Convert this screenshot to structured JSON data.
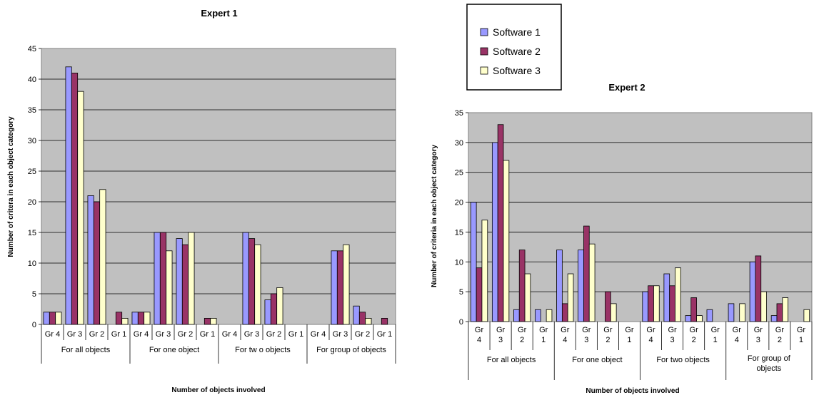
{
  "colors": {
    "plot_bg": "#c0c0c0",
    "software_1": "#9999ff",
    "software_2": "#993366",
    "software_3": "#ffffcc"
  },
  "legend": {
    "items": [
      "Software 1",
      "Software 2",
      "Software 3"
    ]
  },
  "chart_data": [
    {
      "type": "bar",
      "title": "Expert 1",
      "xlabel": "Number of objects involved",
      "ylabel": "Number of critera in each object category",
      "ylim": [
        0,
        45
      ],
      "yticks": [
        0,
        5,
        10,
        15,
        20,
        25,
        30,
        35,
        40,
        45
      ],
      "grid": true,
      "groups": [
        "For all objects",
        "For one object",
        "For tw o objects",
        "For group of objects"
      ],
      "subcategories": [
        [
          "Gr 4",
          "Gr 3",
          "Gr 2",
          "Gr 1"
        ],
        [
          "Gr 4",
          "Gr 3",
          "Gr 2",
          "Gr 1"
        ],
        [
          "Gr 4",
          "Gr 3",
          "Gr 2",
          "Gr 1"
        ],
        [
          "Gr 4",
          "Gr 3",
          "Gr 2",
          "Gr 1"
        ]
      ],
      "series": [
        {
          "name": "Software 1",
          "values": [
            2,
            42,
            21,
            0,
            2,
            15,
            14,
            0,
            0,
            15,
            4,
            0,
            0,
            12,
            3,
            0
          ]
        },
        {
          "name": "Software 2",
          "values": [
            2,
            41,
            20,
            2,
            2,
            15,
            13,
            1,
            0,
            14,
            5,
            0,
            0,
            12,
            2,
            1
          ]
        },
        {
          "name": "Software 3",
          "values": [
            2,
            38,
            22,
            1,
            2,
            12,
            15,
            1,
            0,
            13,
            6,
            0,
            0,
            13,
            1,
            0
          ]
        }
      ]
    },
    {
      "type": "bar",
      "title": "Expert 2",
      "xlabel": "Number of objects involved",
      "ylabel": "Number of criteria in each object category",
      "ylim": [
        0,
        35
      ],
      "yticks": [
        0,
        5,
        10,
        15,
        20,
        25,
        30,
        35
      ],
      "grid": true,
      "groups": [
        "For all objects",
        "For one object",
        "For two objects",
        "For group of objects"
      ],
      "subcategories": [
        [
          "Gr 4",
          "Gr 3",
          "Gr 2",
          "Gr 1"
        ],
        [
          "Gr 4",
          "Gr 3",
          "Gr 2",
          "Gr 1"
        ],
        [
          "Gr 4",
          "Gr 3",
          "Gr 2",
          "Gr 1"
        ],
        [
          "Gr 4",
          "Gr 3",
          "Gr 2",
          "Gr 1"
        ]
      ],
      "series": [
        {
          "name": "Software 1",
          "values": [
            20,
            30,
            2,
            2,
            12,
            12,
            0,
            0,
            5,
            8,
            1,
            2,
            3,
            10,
            1,
            0
          ]
        },
        {
          "name": "Software 2",
          "values": [
            9,
            33,
            12,
            0,
            3,
            16,
            5,
            0,
            6,
            6,
            4,
            0,
            0,
            11,
            3,
            0
          ]
        },
        {
          "name": "Software 3",
          "values": [
            17,
            27,
            8,
            2,
            8,
            13,
            3,
            0,
            6,
            9,
            1,
            0,
            3,
            5,
            4,
            2
          ]
        }
      ]
    }
  ]
}
